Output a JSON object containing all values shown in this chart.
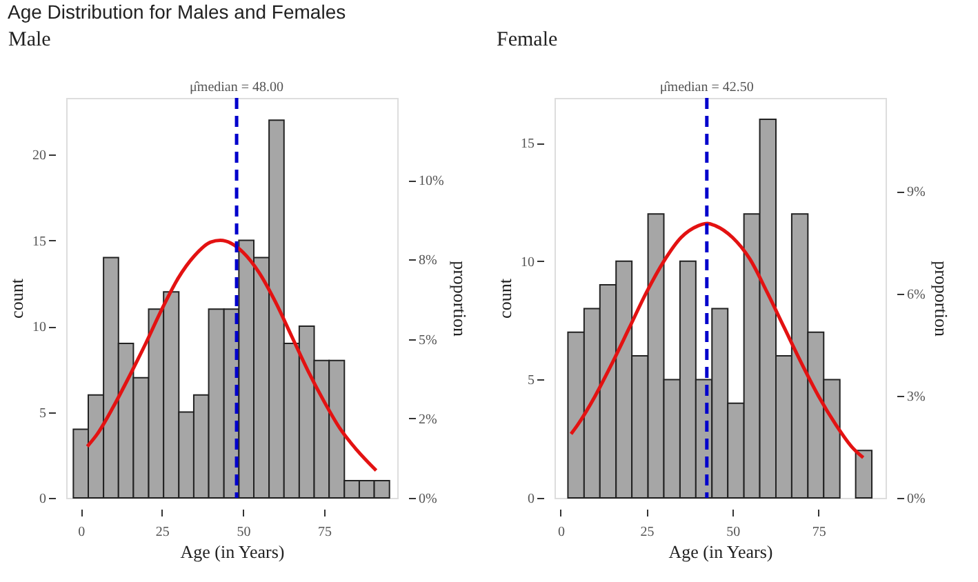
{
  "chart_data": [
    {
      "type": "histogram",
      "title": "Age Distribution for Males and Females",
      "subtitle": "Male",
      "xlabel": "Age (in Years)",
      "ylabel": "count",
      "y2label": "proportion",
      "color": "#a6a6a6",
      "bins": [
        -2.3,
        2.3,
        7.0,
        11.6,
        16.2,
        20.9,
        25.5,
        30.2,
        34.8,
        39.4,
        44.1,
        48.7,
        53.3,
        58.0,
        62.6,
        67.3,
        71.9,
        76.5,
        81.2,
        85.8,
        90.4,
        95.1
      ],
      "values": [
        4,
        6,
        14,
        9,
        7,
        11,
        12,
        5,
        6,
        11,
        11,
        15,
        14,
        22,
        9,
        10,
        8,
        8,
        1,
        1,
        1
      ],
      "series": [
        {
          "type": "line",
          "color": "#e31212",
          "x": [
            2,
            5,
            10,
            15,
            20,
            25,
            30,
            35,
            40,
            43,
            50,
            55,
            60,
            65,
            70,
            75,
            80,
            85,
            91
          ],
          "values": [
            3.0,
            3.7,
            5.3,
            7.1,
            9.0,
            11.0,
            12.8,
            14.1,
            14.9,
            15.0,
            14.3,
            13.1,
            11.4,
            9.4,
            7.4,
            5.6,
            4.0,
            2.8,
            1.6
          ]
        }
      ],
      "ref_lines": [
        {
          "axis": "x",
          "value": 48,
          "label": "μ̂median = 48.00",
          "color": "#0000cc",
          "line_style": "dashed"
        }
      ],
      "xlim": [
        -4.5,
        97.5
      ],
      "xticks": [
        0,
        25,
        50,
        75
      ],
      "ylim": [
        0,
        23.3
      ],
      "yticks": [
        0,
        5,
        10,
        15,
        20
      ],
      "y2lim": [
        0,
        12.59
      ],
      "y2ticks": [
        {
          "value": 0,
          "label": "0%"
        },
        {
          "value": 2.5,
          "label": "2%"
        },
        {
          "value": 5,
          "label": "5%"
        },
        {
          "value": 7.5,
          "label": "8%"
        },
        {
          "value": 10,
          "label": "10%"
        }
      ],
      "grid": false,
      "legend": false
    },
    {
      "type": "histogram",
      "title": "Female",
      "xlabel": "Age (in Years)",
      "ylabel": "count",
      "y2label": "proportion",
      "color": "#a6a6a6",
      "bins": [
        2.1,
        6.8,
        11.4,
        16.1,
        20.7,
        25.4,
        30.0,
        34.7,
        39.3,
        44.0,
        48.6,
        53.3,
        57.9,
        62.6,
        67.2,
        71.9,
        76.5,
        81.2,
        85.8,
        90.5
      ],
      "values": [
        7,
        8,
        9,
        10,
        6,
        12,
        5,
        10,
        5,
        8,
        4,
        12,
        16,
        6,
        12,
        7,
        5,
        0,
        2
      ],
      "series": [
        {
          "type": "line",
          "color": "#e31212",
          "x": [
            3,
            5,
            10,
            15,
            20,
            25,
            30,
            35,
            40,
            42.6,
            45,
            50,
            55,
            60,
            65,
            70,
            75,
            80,
            85,
            88
          ],
          "values": [
            2.7,
            3.1,
            4.3,
            5.7,
            7.2,
            8.7,
            10.0,
            11.0,
            11.5,
            11.6,
            11.5,
            11.0,
            10.1,
            8.7,
            7.2,
            5.7,
            4.3,
            3.1,
            2.1,
            1.7
          ]
        }
      ],
      "ref_lines": [
        {
          "axis": "x",
          "value": 42.5,
          "label": "μ̂median = 42.50",
          "color": "#0000cc",
          "line_style": "dashed"
        }
      ],
      "xlim": [
        -1.8,
        94.5
      ],
      "xticks": [
        0,
        25,
        50,
        75
      ],
      "ylim": [
        0,
        16.9
      ],
      "yticks": [
        0,
        5,
        10,
        15
      ],
      "y2lim": [
        0,
        11.74
      ],
      "y2ticks": [
        {
          "value": 0,
          "label": "0%"
        },
        {
          "value": 3,
          "label": "3%"
        },
        {
          "value": 6,
          "label": "6%"
        },
        {
          "value": 9,
          "label": "9%"
        }
      ],
      "grid": false,
      "legend": false
    }
  ]
}
